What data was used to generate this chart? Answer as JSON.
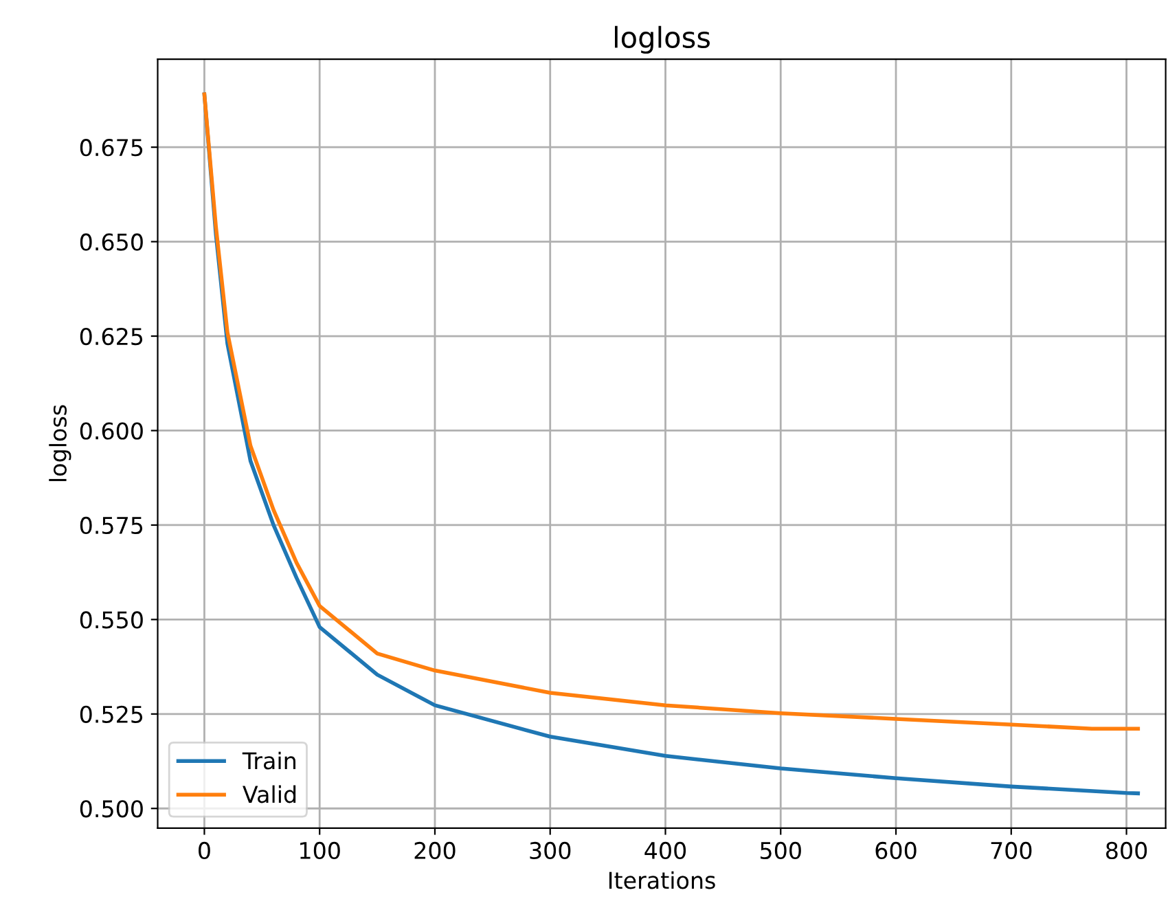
{
  "chart_data": {
    "type": "line",
    "title": "logloss",
    "xlabel": "Iterations",
    "ylabel": "logloss",
    "xlim": [
      -40.5,
      834
    ],
    "ylim": [
      0.4948,
      0.6983
    ],
    "xticks": [
      0,
      100,
      200,
      300,
      400,
      500,
      600,
      700,
      800
    ],
    "yticks": [
      {
        "value": 0.5,
        "label": "0.500"
      },
      {
        "value": 0.525,
        "label": "0.525"
      },
      {
        "value": 0.55,
        "label": "0.550"
      },
      {
        "value": 0.575,
        "label": "0.575"
      },
      {
        "value": 0.6,
        "label": "0.600"
      },
      {
        "value": 0.625,
        "label": "0.625"
      },
      {
        "value": 0.65,
        "label": "0.650"
      },
      {
        "value": 0.675,
        "label": "0.675"
      }
    ],
    "grid": true,
    "legend": "bottom left",
    "marker": "none",
    "line_style": "solid",
    "series": [
      {
        "name": "Train",
        "color": "#1f77b4",
        "x": [
          0,
          10,
          20,
          40,
          60,
          80,
          100,
          150,
          200,
          300,
          400,
          500,
          600,
          700,
          800,
          810
        ],
        "values": [
          0.689,
          0.652,
          0.623,
          0.592,
          0.575,
          0.561,
          0.548,
          0.5354,
          0.5273,
          0.519,
          0.5139,
          0.5106,
          0.508,
          0.5058,
          0.5041,
          0.504
        ]
      },
      {
        "name": "Valid",
        "color": "#ff7f0e",
        "x": [
          0,
          10,
          20,
          40,
          60,
          80,
          100,
          150,
          200,
          300,
          400,
          500,
          600,
          700,
          770,
          810
        ],
        "values": [
          0.689,
          0.654,
          0.626,
          0.596,
          0.579,
          0.565,
          0.5536,
          0.541,
          0.5365,
          0.5306,
          0.5273,
          0.5252,
          0.5237,
          0.5222,
          0.5211,
          0.5211
        ]
      }
    ]
  }
}
